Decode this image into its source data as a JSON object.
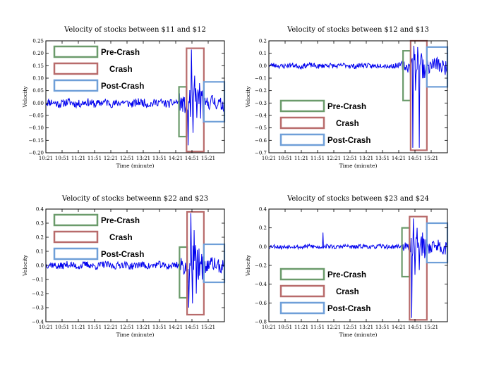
{
  "chart_data": [
    {
      "type": "line",
      "title": "Velocity of stocks between $11 and $12",
      "xlabel": "Time (minute)",
      "ylabel": "Velocity",
      "x_ticks": [
        "10:21",
        "10:51",
        "11:21",
        "11:51",
        "12:21",
        "12:51",
        "13:21",
        "13:51",
        "14:21",
        "14:51",
        "15:21"
      ],
      "xlim": [
        0,
        330
      ],
      "ylim": [
        -0.2,
        0.25
      ],
      "y_ticks": [
        -0.2,
        -0.15,
        -0.1,
        -0.05,
        0.0,
        0.05,
        0.1,
        0.15,
        0.2,
        0.25
      ],
      "y_tick_labels": [
        "−0.20",
        "−0.15",
        "−0.10",
        "−0.05",
        "0.00",
        "0.05",
        "0.10",
        "0.15",
        "0.20",
        "0.25"
      ],
      "legend": [
        {
          "label": "Pre-Crash",
          "color": "#6b9b6b"
        },
        {
          "label": "Crash",
          "color": "#b86b6b"
        },
        {
          "label": "Post-Crash",
          "color": "#6f9fd8"
        }
      ],
      "legend_position": "top-left",
      "regions": [
        {
          "label": "Pre-Crash",
          "x": [
            246,
            260
          ],
          "y": [
            -0.135,
            0.065
          ]
        },
        {
          "label": "Crash",
          "x": [
            260,
            292
          ],
          "y": [
            -0.195,
            0.22
          ]
        },
        {
          "label": "Post-Crash",
          "x": [
            292,
            330
          ],
          "y": [
            -0.075,
            0.085
          ]
        }
      ],
      "events": [
        {
          "x": 263,
          "y": -0.17
        },
        {
          "x": 269,
          "y": 0.215
        },
        {
          "x": 272,
          "y": -0.12
        },
        {
          "x": 275,
          "y": 0.11
        },
        {
          "x": 279,
          "y": -0.06
        },
        {
          "x": 284,
          "y": 0.08
        },
        {
          "x": 289,
          "y": 0.05
        }
      ],
      "noise_amplitude": 0.016,
      "crash_amplitude": 0.07,
      "post_amplitude": 0.03,
      "seed": 11
    },
    {
      "type": "line",
      "title": "Velocity of stocks between $12 and $13",
      "xlabel": "Time (minute)",
      "ylabel": "Velocity",
      "x_ticks": [
        "10:21",
        "10:51",
        "11:21",
        "11:51",
        "12:21",
        "12:51",
        "13:21",
        "13:51",
        "14:21",
        "14:51",
        "15:21"
      ],
      "xlim": [
        0,
        330
      ],
      "ylim": [
        -0.7,
        0.2
      ],
      "y_ticks": [
        -0.7,
        -0.6,
        -0.5,
        -0.4,
        -0.3,
        -0.2,
        -0.1,
        0.0,
        0.1,
        0.2
      ],
      "y_tick_labels": [
        "−0.7",
        "−0.6",
        "−0.5",
        "−0.4",
        "−0.3",
        "−0.2",
        "−0.1",
        "0.0",
        "0.1",
        "0.2"
      ],
      "legend": [
        {
          "label": "Pre-Crash",
          "color": "#6b9b6b"
        },
        {
          "label": "Crash",
          "color": "#b86b6b"
        },
        {
          "label": "Post-Crash",
          "color": "#6f9fd8"
        }
      ],
      "legend_position": "bottom-left",
      "regions": [
        {
          "label": "Pre-Crash",
          "x": [
            248,
            262
          ],
          "y": [
            -0.28,
            0.12
          ]
        },
        {
          "label": "Crash",
          "x": [
            262,
            292
          ],
          "y": [
            -0.68,
            0.2
          ]
        },
        {
          "label": "Post-Crash",
          "x": [
            292,
            330
          ],
          "y": [
            -0.17,
            0.15
          ]
        }
      ],
      "events": [
        {
          "x": 266,
          "y": -0.66
        },
        {
          "x": 268,
          "y": 0.16
        },
        {
          "x": 271,
          "y": -0.2
        },
        {
          "x": 275,
          "y": 0.15
        },
        {
          "x": 278,
          "y": -0.66
        },
        {
          "x": 282,
          "y": 0.1
        },
        {
          "x": 288,
          "y": -0.1
        }
      ],
      "noise_amplitude": 0.02,
      "crash_amplitude": 0.1,
      "post_amplitude": 0.06,
      "seed": 23
    },
    {
      "type": "line",
      "title": "Velocity of stocks betweenn $22 and $23",
      "xlabel": "Time (minute)",
      "ylabel": "Velocity",
      "x_ticks": [
        "10:21",
        "10:51",
        "11:21",
        "11:51",
        "12:21",
        "12:51",
        "13:21",
        "13:51",
        "14:21",
        "14:51",
        "15:21"
      ],
      "xlim": [
        0,
        330
      ],
      "ylim": [
        -0.4,
        0.4
      ],
      "y_ticks": [
        -0.4,
        -0.3,
        -0.2,
        -0.1,
        0.0,
        0.1,
        0.2,
        0.3,
        0.4
      ],
      "y_tick_labels": [
        "−0.4",
        "−0.3",
        "−0.2",
        "−0.1",
        "0.0",
        "0.1",
        "0.2",
        "0.3",
        "0.4"
      ],
      "legend": [
        {
          "label": "Pre-Crash",
          "color": "#6b9b6b"
        },
        {
          "label": "Crash",
          "color": "#b86b6b"
        },
        {
          "label": "Post-Crash",
          "color": "#6f9fd8"
        }
      ],
      "legend_position": "top-left",
      "regions": [
        {
          "label": "Pre-Crash",
          "x": [
            247,
            261
          ],
          "y": [
            -0.23,
            0.13
          ]
        },
        {
          "label": "Crash",
          "x": [
            261,
            292
          ],
          "y": [
            -0.35,
            0.38
          ]
        },
        {
          "label": "Post-Crash",
          "x": [
            292,
            330
          ],
          "y": [
            -0.12,
            0.15
          ]
        }
      ],
      "events": [
        {
          "x": 264,
          "y": -0.3
        },
        {
          "x": 268,
          "y": 0.37
        },
        {
          "x": 271,
          "y": -0.27
        },
        {
          "x": 274,
          "y": 0.25
        },
        {
          "x": 278,
          "y": -0.2
        },
        {
          "x": 283,
          "y": 0.12
        },
        {
          "x": 289,
          "y": -0.1
        }
      ],
      "noise_amplitude": 0.025,
      "crash_amplitude": 0.12,
      "post_amplitude": 0.05,
      "seed": 37
    },
    {
      "type": "line",
      "title": "Velocity of stocks between $23 and $24",
      "xlabel": "Time (minute)",
      "ylabel": "Velocity",
      "x_ticks": [
        "10:21",
        "10:51",
        "11:21",
        "11:51",
        "12:21",
        "12:51",
        "13:21",
        "13:51",
        "14:21",
        "14:51",
        "15:21"
      ],
      "xlim": [
        0,
        330
      ],
      "ylim": [
        -0.8,
        0.4
      ],
      "y_ticks": [
        -0.8,
        -0.6,
        -0.4,
        -0.2,
        0.0,
        0.2,
        0.4
      ],
      "y_tick_labels": [
        "−0.8",
        "−0.6",
        "−0.4",
        "−0.2",
        "0.0",
        "0.2",
        "0.4"
      ],
      "legend": [
        {
          "label": "Pre-Crash",
          "color": "#6b9b6b"
        },
        {
          "label": "Crash",
          "color": "#b86b6b"
        },
        {
          "label": "Post-Crash",
          "color": "#6f9fd8"
        }
      ],
      "legend_position": "bottom-left",
      "regions": [
        {
          "label": "Pre-Crash",
          "x": [
            246,
            260
          ],
          "y": [
            -0.32,
            0.2
          ]
        },
        {
          "label": "Crash",
          "x": [
            260,
            292
          ],
          "y": [
            -0.78,
            0.32
          ]
        },
        {
          "label": "Post-Crash",
          "x": [
            292,
            330
          ],
          "y": [
            -0.17,
            0.25
          ]
        }
      ],
      "events": [
        {
          "x": 100,
          "y": 0.15
        },
        {
          "x": 264,
          "y": -0.76
        },
        {
          "x": 267,
          "y": 0.3
        },
        {
          "x": 270,
          "y": -0.3
        },
        {
          "x": 274,
          "y": 0.2
        },
        {
          "x": 278,
          "y": -0.25
        },
        {
          "x": 284,
          "y": 0.15
        }
      ],
      "noise_amplitude": 0.022,
      "crash_amplitude": 0.12,
      "post_amplitude": 0.07,
      "seed": 53
    }
  ]
}
